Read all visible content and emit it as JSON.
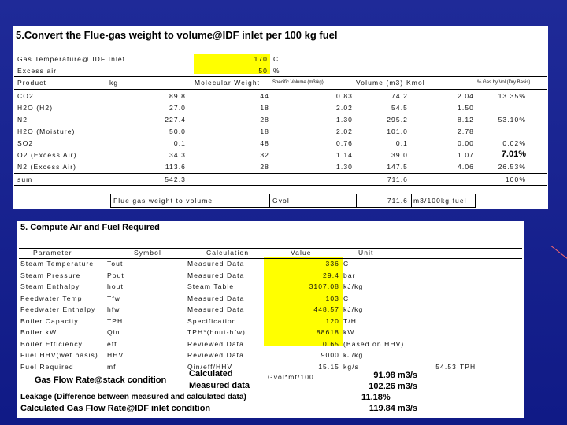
{
  "panel1": {
    "title": "5.Convert the Flue-gas weight to volume@IDF inlet per 100 kg fuel",
    "gas_temp_label": "Gas Temperature@ IDF Inlet",
    "gas_temp_value": "170",
    "gas_temp_unit": "C",
    "excess_air_label": "Excess air",
    "excess_air_value": "50",
    "excess_air_unit": "%",
    "headers": [
      "Product",
      "kg",
      "Molecular Weight",
      "Specific Volume (m3/kg)",
      "Volume (m3)",
      "Kmol",
      "% Gas by Vol (Dry Basis)"
    ],
    "rows": [
      [
        "CO2",
        "89.8",
        "44",
        "0.83",
        "74.2",
        "2.04",
        "13.35%"
      ],
      [
        "H2O (H2)",
        "27.0",
        "18",
        "2.02",
        "54.5",
        "1.50",
        ""
      ],
      [
        "N2",
        "227.4",
        "28",
        "1.30",
        "295.2",
        "8.12",
        "53.10%"
      ],
      [
        "H2O (Moisture)",
        "50.0",
        "18",
        "2.02",
        "101.0",
        "2.78",
        ""
      ],
      [
        "SO2",
        "0.1",
        "48",
        "0.76",
        "0.1",
        "0.00",
        "0.02%"
      ],
      [
        "O2 (Excess Air)",
        "34.3",
        "32",
        "1.14",
        "39.0",
        "1.07",
        "7.01%"
      ],
      [
        "N2 (Excess Air)",
        "113.6",
        "28",
        "1.30",
        "147.5",
        "4.06",
        "26.53%"
      ]
    ],
    "sum_label": "sum",
    "sum_kg": "542.3",
    "sum_volume": "711.6",
    "sum_pct": "100%",
    "fv_label": "Flue gas weight to volume",
    "fv_symbol": "Gvol",
    "fv_value": "711.6",
    "fv_unit": "m3/100kg fuel"
  },
  "panel2": {
    "title": "5. Compute Air and Fuel Required",
    "headers": [
      "Parameter",
      "Symbol",
      "Calculation",
      "Value",
      "Unit"
    ],
    "rows": [
      [
        "Steam Temperature",
        "Tout",
        "Measured Data",
        "336",
        "C"
      ],
      [
        "Steam Pressure",
        "Pout",
        "Measured Data",
        "29.4",
        "bar"
      ],
      [
        "Steam Enthalpy",
        "hout",
        "Steam Table",
        "3107.08",
        "kJ/kg"
      ],
      [
        "Feedwater Temp",
        "Tfw",
        "Measured Data",
        "103",
        "C"
      ],
      [
        "Feedwater Enthalpy",
        "hfw",
        "Measured Data",
        "448.57",
        "kJ/kg"
      ],
      [
        "Boiler Capacity",
        "TPH",
        "Specification",
        "120",
        "T/H"
      ],
      [
        "Boiler kW",
        "Qin",
        "TPH*(hout-hfw)",
        "88618",
        "kW"
      ],
      [
        "Boiler Efficiency",
        "eff",
        "Reviewed Data",
        "0.65",
        "(Based on HHV)"
      ],
      [
        "Fuel HHV(wet basis)",
        "HHV",
        "Reviewed Data",
        "9000",
        "kJ/kg"
      ],
      [
        "Fuel Required",
        "mf",
        "Qin/eff/HHV",
        "15.15",
        "kg/s"
      ]
    ],
    "fuel_tph_value": "54.53",
    "fuel_tph_unit": "TPH",
    "gas_flow_label": "Gas Flow Rate@stack condition",
    "calc_label": "Calculated",
    "calc_formula": "Gvol*mf/100",
    "calc_value": "91.98 m3/s",
    "measured_label": "Measured data",
    "measured_value": "102.26 m3/s",
    "leakage_label": "Leakage (Difference between measured and calculated data)",
    "leakage_value": "11.18%",
    "final_label": "Calculated Gas Flow Rate@IDF inlet condition",
    "final_value": "119.84 m3/s"
  },
  "colors": {
    "background": "#1a2492",
    "highlight": "#ffff00"
  }
}
